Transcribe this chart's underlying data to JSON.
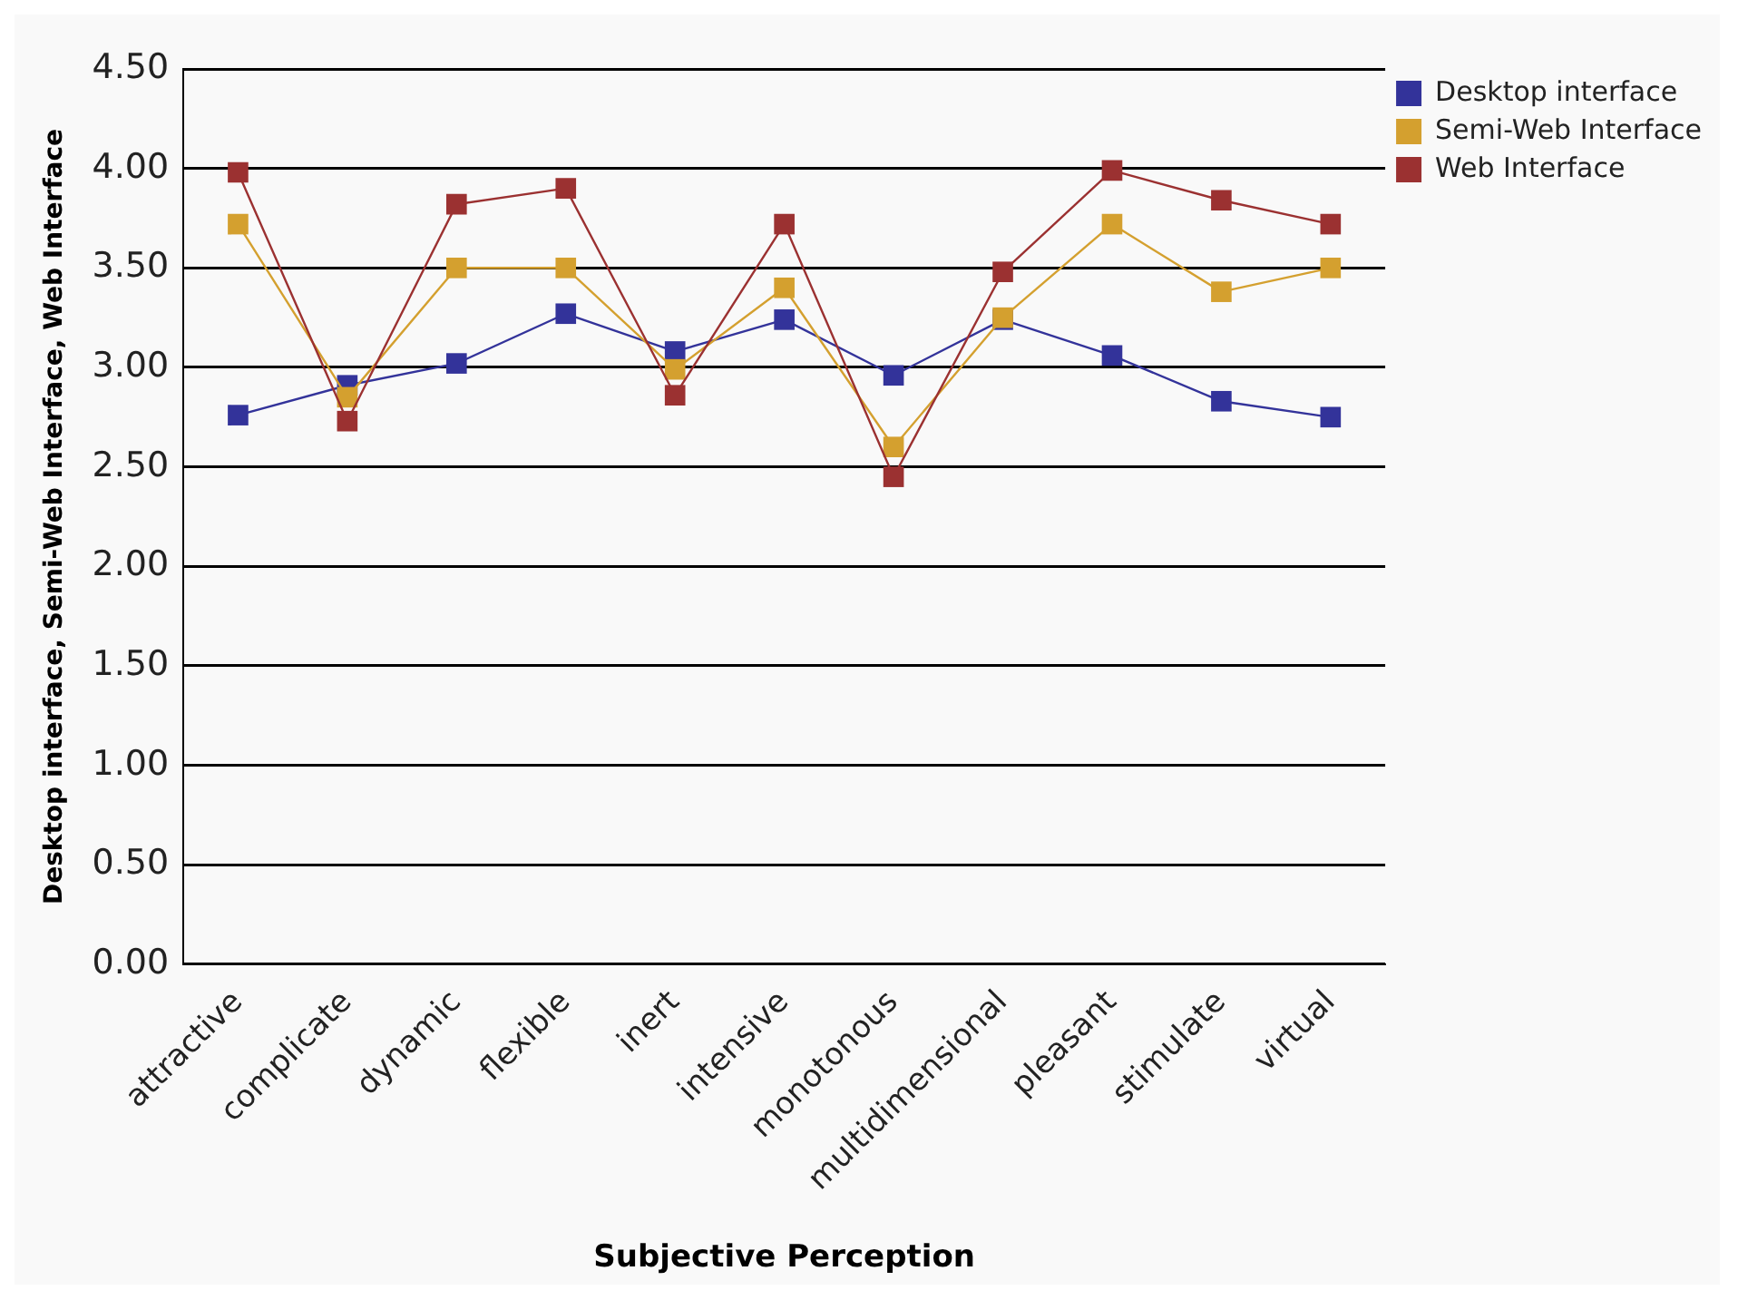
{
  "chart_data": {
    "type": "line",
    "xlabel": "Subjective Perception",
    "ylabel": "Desktop interface, Semi-Web Interface, Web Interface",
    "categories": [
      "attractive",
      "complicate",
      "dynamic",
      "flexible",
      "inert",
      "intensive",
      "monotonous",
      "multidimensional",
      "pleasant",
      "stimulate",
      "virtual"
    ],
    "series": [
      {
        "name": "Desktop interface",
        "color": "#33339a",
        "values": [
          2.76,
          2.91,
          3.02,
          3.27,
          3.08,
          3.24,
          2.96,
          3.24,
          3.06,
          2.83,
          2.75
        ]
      },
      {
        "name": "Semi-Web Interface",
        "color": "#d4a02f",
        "values": [
          3.72,
          2.85,
          3.5,
          3.5,
          2.99,
          3.4,
          2.6,
          3.25,
          3.72,
          3.38,
          3.5
        ]
      },
      {
        "name": "Web Interface",
        "color": "#9b3131",
        "values": [
          3.98,
          2.73,
          3.82,
          3.9,
          2.86,
          3.72,
          2.45,
          3.48,
          3.99,
          3.84,
          3.72
        ]
      }
    ],
    "ylim": [
      0,
      4.5
    ],
    "yticks": [
      {
        "value": 0,
        "label": "0.00"
      },
      {
        "value": 0.5,
        "label": "0.50"
      },
      {
        "value": 1,
        "label": "1.00"
      },
      {
        "value": 1.5,
        "label": "1.50"
      },
      {
        "value": 2,
        "label": "2.00"
      },
      {
        "value": 2.5,
        "label": "2.50"
      },
      {
        "value": 3,
        "label": "3.00"
      },
      {
        "value": 3.5,
        "label": "3.50"
      },
      {
        "value": 4,
        "label": "4.00"
      },
      {
        "value": 4.5,
        "label": "4.50"
      }
    ],
    "grid": "y",
    "legend": "top right",
    "marker": "square",
    "line_style": "solid"
  }
}
